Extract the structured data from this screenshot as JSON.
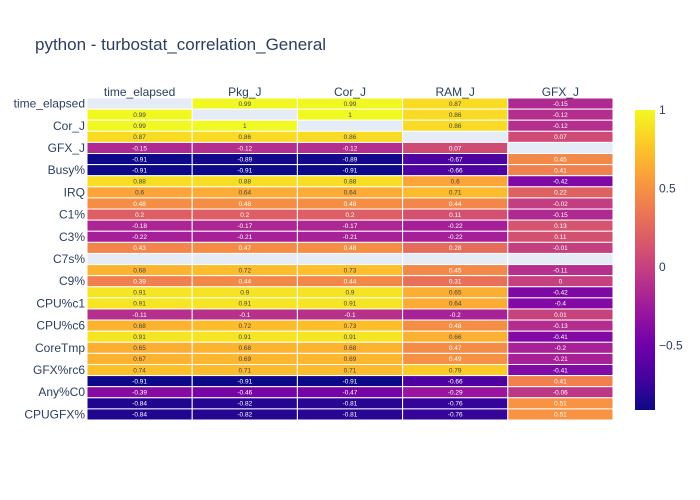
{
  "chart_data": {
    "type": "heatmap",
    "title": "python - turbostat_correlation_General",
    "columns": [
      "time_elapsed",
      "Pkg_J",
      "Cor_J",
      "RAM_J",
      "GFX_J"
    ],
    "row_tick_labels": [
      "time_elapsed",
      "Cor_J",
      "GFX_J",
      "Busy%",
      "IRQ",
      "C1%",
      "C3%",
      "C7s%",
      "C9%",
      "CPU%c1",
      "CPU%c6",
      "CoreTmp",
      "GFX%rc6",
      "Any%C0",
      "CPUGFX%"
    ],
    "rows": 29,
    "values": [
      [
        null,
        0.99,
        0.99,
        0.87,
        -0.15
      ],
      [
        0.99,
        null,
        1,
        0.86,
        -0.12
      ],
      [
        0.99,
        1,
        null,
        0.86,
        -0.12
      ],
      [
        0.87,
        0.86,
        0.86,
        null,
        0.07
      ],
      [
        -0.15,
        -0.12,
        -0.12,
        0.07,
        null
      ],
      [
        -0.91,
        -0.89,
        -0.89,
        -0.67,
        0.45
      ],
      [
        -0.91,
        -0.91,
        -0.91,
        -0.66,
        0.41
      ],
      [
        0.88,
        0.88,
        0.88,
        0.6,
        -0.42
      ],
      [
        0.6,
        0.64,
        0.64,
        0.71,
        0.22
      ],
      [
        0.48,
        0.48,
        0.48,
        0.44,
        -0.02
      ],
      [
        0.2,
        0.2,
        0.2,
        0.11,
        -0.15
      ],
      [
        -0.18,
        -0.17,
        -0.17,
        -0.22,
        0.13
      ],
      [
        -0.22,
        -0.21,
        -0.21,
        -0.22,
        0.11
      ],
      [
        0.43,
        0.47,
        0.48,
        0.28,
        -0.01
      ],
      [
        null,
        null,
        null,
        null,
        null
      ],
      [
        0.68,
        0.72,
        0.73,
        0.45,
        -0.11
      ],
      [
        0.39,
        0.44,
        0.44,
        0.31,
        0
      ],
      [
        0.91,
        0.9,
        0.9,
        0.65,
        -0.42
      ],
      [
        0.91,
        0.91,
        0.91,
        0.64,
        -0.4
      ],
      [
        -0.11,
        -0.1,
        -0.1,
        -0.2,
        0.01
      ],
      [
        0.68,
        0.72,
        0.73,
        0.48,
        -0.13
      ],
      [
        0.91,
        0.91,
        0.91,
        0.66,
        -0.41
      ],
      [
        0.65,
        0.68,
        0.68,
        0.47,
        -0.2
      ],
      [
        0.67,
        0.69,
        0.69,
        0.49,
        -0.21
      ],
      [
        0.74,
        0.71,
        0.71,
        0.79,
        -0.41
      ],
      [
        -0.91,
        -0.91,
        -0.91,
        -0.66,
        0.41
      ],
      [
        -0.39,
        -0.46,
        -0.47,
        -0.29,
        -0.06
      ],
      [
        -0.84,
        -0.82,
        -0.81,
        -0.76,
        0.51
      ],
      [
        -0.84,
        -0.82,
        -0.81,
        -0.76,
        0.51
      ]
    ],
    "zlim": [
      -0.91,
      1
    ],
    "colorbar_ticks": [
      1,
      0.5,
      0,
      -0.5
    ],
    "colorscale": [
      "#0d0887",
      "#46039f",
      "#7201a8",
      "#9c179e",
      "#bd3786",
      "#d8576b",
      "#ed7953",
      "#fb9f3a",
      "#fdca26",
      "#f0f921"
    ],
    "missing_color": "#e5ecf6"
  }
}
